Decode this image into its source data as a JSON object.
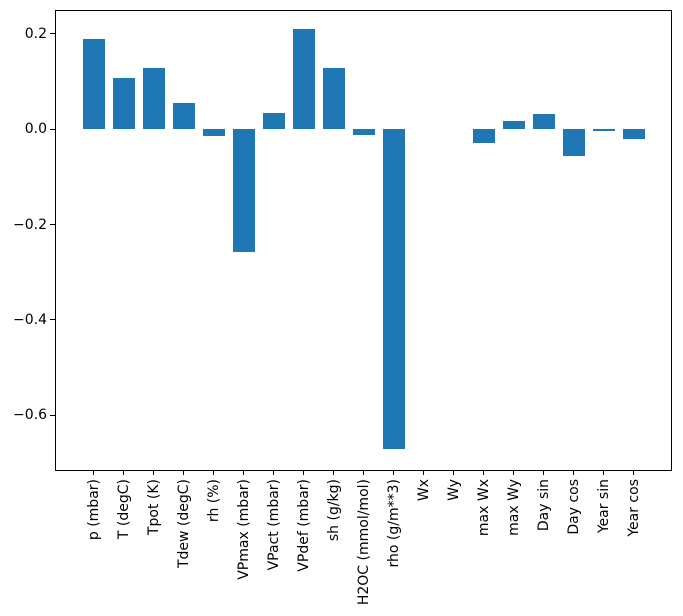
{
  "figure": {
    "background": "#ffffff",
    "spine_color": "#000000",
    "text_color": "#000000"
  },
  "chart_data": {
    "type": "bar",
    "title": "",
    "xlabel": "",
    "ylabel": "",
    "categories": [
      "p (mbar)",
      "T (degC)",
      "Tpot (K)",
      "Tdew (degC)",
      "rh (%)",
      "VPmax (mbar)",
      "VPact (mbar)",
      "VPdef (mbar)",
      "sh (g/kg)",
      "H2OC (mmol/mol)",
      "rho (g/m**3)",
      "Wx",
      "Wy",
      "max Wx",
      "max Wy",
      "Day sin",
      "Day cos",
      "Year sin",
      "Year cos"
    ],
    "values": [
      0.19,
      0.108,
      0.128,
      0.055,
      -0.015,
      -0.257,
      0.034,
      0.21,
      0.129,
      -0.012,
      -0.671,
      0.0004,
      0.0002,
      -0.03,
      0.017,
      0.032,
      -0.056,
      -0.003,
      -0.021
    ],
    "bar_color": "#1f77b4",
    "ylim": [
      -0.717,
      0.25
    ],
    "yticks": [
      0.2,
      0.0,
      -0.2,
      -0.4,
      -0.6
    ],
    "ytick_labels": [
      "0.2",
      "0.0",
      "−0.2",
      "−0.4",
      "−0.6"
    ],
    "grid": false,
    "legend_position": "none"
  }
}
